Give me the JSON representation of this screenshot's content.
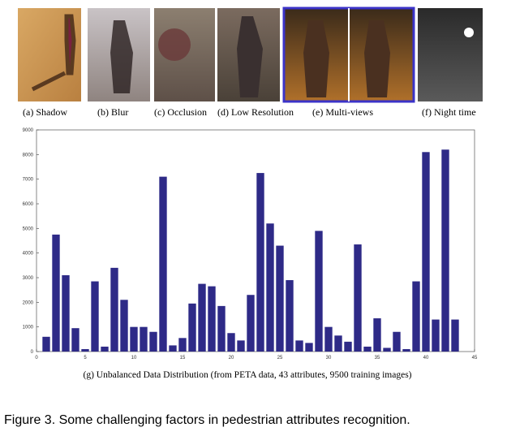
{
  "panels": [
    {
      "caption": "(a) Shadow"
    },
    {
      "caption": "(b) Blur"
    },
    {
      "caption": "(c) Occlusion"
    },
    {
      "caption": "(d) Low Resolution"
    },
    {
      "caption": "(e) Multi-views"
    },
    {
      "caption": "(f) Night time"
    }
  ],
  "chart_data": {
    "type": "bar",
    "x_label": "(g) Unbalanced Data Distribution (from PETA data, 43 attributes, 9500 training images)",
    "x": [
      1,
      2,
      3,
      4,
      5,
      6,
      7,
      8,
      9,
      10,
      11,
      12,
      13,
      14,
      15,
      16,
      17,
      18,
      19,
      20,
      21,
      22,
      23,
      24,
      25,
      26,
      27,
      28,
      29,
      30,
      31,
      32,
      33,
      34,
      35,
      36,
      37,
      38,
      39,
      40,
      41,
      42,
      43
    ],
    "values": [
      600,
      4750,
      3100,
      950,
      100,
      2850,
      200,
      3400,
      2100,
      1000,
      1000,
      800,
      7100,
      250,
      550,
      1950,
      2750,
      2650,
      1850,
      750,
      450,
      2300,
      7250,
      5200,
      4300,
      2900,
      450,
      350,
      4900,
      1000,
      650,
      400,
      4350,
      200,
      1350,
      150,
      800,
      100,
      2850,
      8100,
      1300,
      8200,
      1300
    ],
    "color": "#2e2a87",
    "xlim": [
      0,
      45
    ],
    "xticks": [
      0,
      5,
      10,
      15,
      20,
      25,
      30,
      35,
      40,
      45
    ],
    "ylim": [
      0,
      9000
    ],
    "yticks": [
      0,
      1000,
      2000,
      3000,
      4000,
      5000,
      6000,
      7000,
      8000,
      9000
    ]
  },
  "figure_caption": "Figure 3. Some challenging factors in pedestrian attributes recognition."
}
